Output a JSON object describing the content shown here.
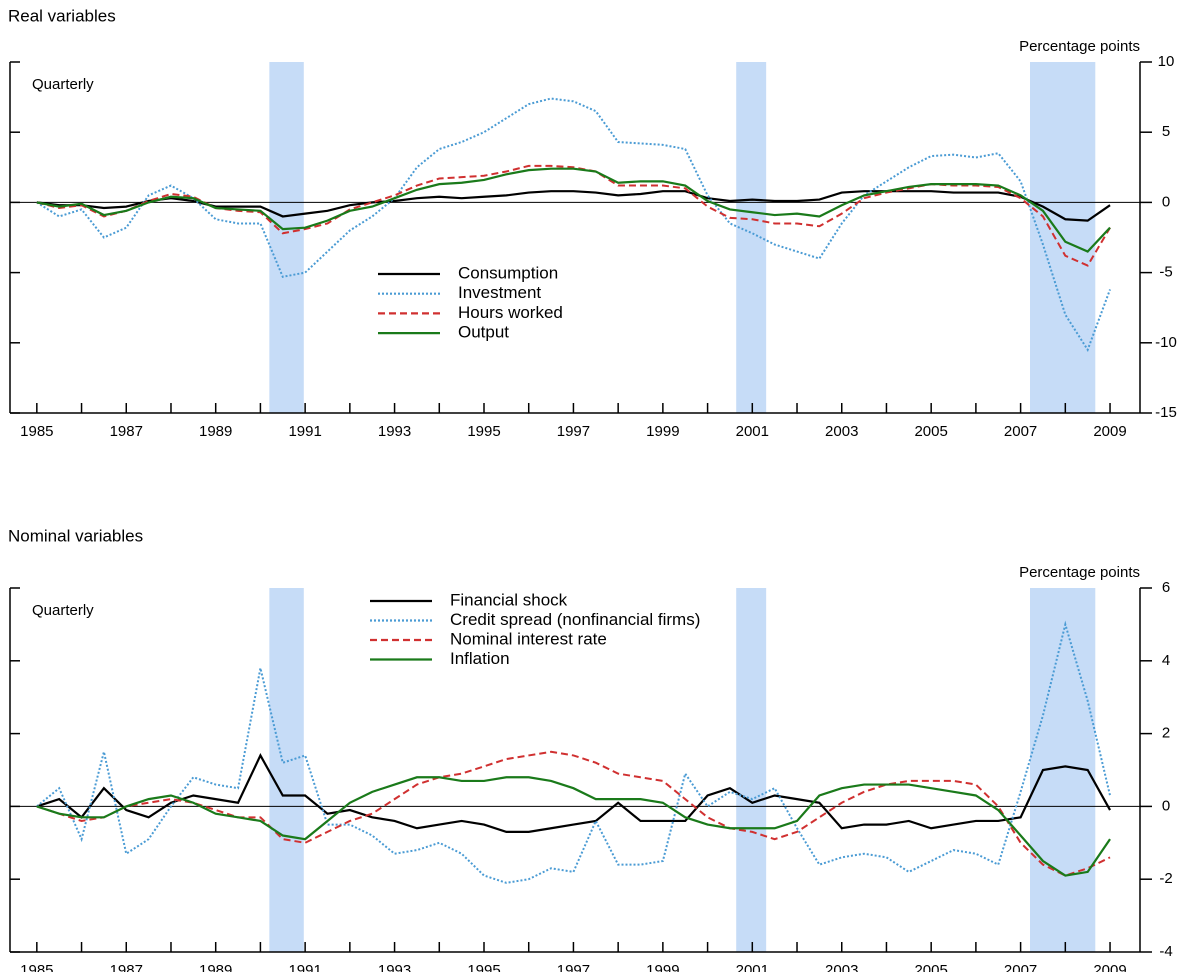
{
  "chart_data": [
    {
      "type": "line",
      "title": "Real variables",
      "y_axis_label": "Percentage points",
      "annotation": "Quarterly",
      "xlim": [
        1984.4,
        2009.67
      ],
      "xticks": [
        1985,
        1987,
        1989,
        1991,
        1993,
        1995,
        1997,
        1999,
        2001,
        2003,
        2005,
        2007,
        2009
      ],
      "xminorticks": [
        1985,
        1986,
        1987,
        1988,
        1989,
        1990,
        1991,
        1992,
        1993,
        1994,
        1995,
        1996,
        1997,
        1998,
        1999,
        2000,
        2001,
        2002,
        2003,
        2004,
        2005,
        2006,
        2007,
        2008,
        2009
      ],
      "ylim": [
        -15,
        10
      ],
      "yticks": [
        10,
        5,
        0,
        -5,
        -10,
        -15
      ],
      "shaded_periods": [
        [
          1990.2,
          1990.97
        ],
        [
          2000.64,
          2001.31
        ],
        [
          2007.21,
          2008.67
        ]
      ],
      "x": [
        1985,
        1985.5,
        1986,
        1986.5,
        1987,
        1987.5,
        1988,
        1988.5,
        1989,
        1989.5,
        1990,
        1990.5,
        1991,
        1991.5,
        1992,
        1992.5,
        1993,
        1993.5,
        1994,
        1994.5,
        1995,
        1995.5,
        1996,
        1996.5,
        1997,
        1997.5,
        1998,
        1998.5,
        1999,
        1999.5,
        2000,
        2000.5,
        2001,
        2001.5,
        2002,
        2002.5,
        2003,
        2003.5,
        2004,
        2004.5,
        2005,
        2005.5,
        2006,
        2006.5,
        2007,
        2007.5,
        2008,
        2008.5,
        2009
      ],
      "series": [
        {
          "name": "Consumption",
          "color": "#000000",
          "style": "solid",
          "values": [
            0,
            -0.2,
            -0.2,
            -0.4,
            -0.3,
            0.1,
            0.3,
            0.1,
            -0.3,
            -0.3,
            -0.3,
            -1.0,
            -0.8,
            -0.6,
            -0.2,
            0,
            0.1,
            0.3,
            0.4,
            0.3,
            0.4,
            0.5,
            0.7,
            0.8,
            0.8,
            0.7,
            0.5,
            0.6,
            0.8,
            0.8,
            0.3,
            0.1,
            0.2,
            0.1,
            0.1,
            0.2,
            0.7,
            0.8,
            0.8,
            0.8,
            0.8,
            0.7,
            0.7,
            0.7,
            0.4,
            -0.3,
            -1.2,
            -1.3,
            -0.2
          ]
        },
        {
          "name": "Investment",
          "color": "#4a9bd4",
          "style": "dotted",
          "values": [
            0,
            -1.0,
            -0.5,
            -2.5,
            -1.8,
            0.5,
            1.2,
            0.3,
            -1.2,
            -1.5,
            -1.5,
            -5.3,
            -5.0,
            -3.5,
            -2.0,
            -1.0,
            0.3,
            2.5,
            3.8,
            4.3,
            5.0,
            6.0,
            7.0,
            7.4,
            7.2,
            6.5,
            4.3,
            4.2,
            4.1,
            3.8,
            0.5,
            -1.5,
            -2.2,
            -3.0,
            -3.5,
            -4.0,
            -1.5,
            0.5,
            1.5,
            2.5,
            3.3,
            3.4,
            3.2,
            3.5,
            1.5,
            -3.0,
            -8.0,
            -10.5,
            -6.2
          ]
        },
        {
          "name": "Hours worked",
          "color": "#d03030",
          "style": "dashed",
          "values": [
            0,
            -0.4,
            -0.2,
            -1.0,
            -0.6,
            0.1,
            0.6,
            0.4,
            -0.4,
            -0.6,
            -0.7,
            -2.2,
            -1.9,
            -1.5,
            -0.5,
            0,
            0.5,
            1.2,
            1.7,
            1.8,
            1.9,
            2.2,
            2.6,
            2.6,
            2.5,
            2.2,
            1.2,
            1.2,
            1.2,
            1.0,
            -0.3,
            -1.1,
            -1.2,
            -1.5,
            -1.5,
            -1.7,
            -0.8,
            0.3,
            0.7,
            1.0,
            1.3,
            1.2,
            1.2,
            1.1,
            0.3,
            -1.0,
            -3.8,
            -4.5,
            -1.8
          ]
        },
        {
          "name": "Output",
          "color": "#1a7a1a",
          "style": "solid",
          "values": [
            0,
            -0.3,
            -0.1,
            -0.9,
            -0.6,
            0,
            0.4,
            0.3,
            -0.4,
            -0.5,
            -0.6,
            -1.9,
            -1.8,
            -1.3,
            -0.6,
            -0.3,
            0.3,
            0.9,
            1.3,
            1.4,
            1.6,
            2.0,
            2.3,
            2.4,
            2.4,
            2.2,
            1.4,
            1.5,
            1.5,
            1.2,
            0.1,
            -0.5,
            -0.7,
            -0.9,
            -0.8,
            -1.0,
            -0.2,
            0.5,
            0.8,
            1.1,
            1.3,
            1.3,
            1.3,
            1.2,
            0.5,
            -0.6,
            -2.8,
            -3.5,
            -1.8
          ]
        }
      ]
    },
    {
      "type": "line",
      "title": "Nominal variables",
      "y_axis_label": "Percentage points",
      "annotation": "Quarterly",
      "xlim": [
        1984.4,
        2009.67
      ],
      "xticks": [
        1985,
        1987,
        1989,
        1991,
        1993,
        1995,
        1997,
        1999,
        2001,
        2003,
        2005,
        2007,
        2009
      ],
      "xminorticks": [
        1985,
        1986,
        1987,
        1988,
        1989,
        1990,
        1991,
        1992,
        1993,
        1994,
        1995,
        1996,
        1997,
        1998,
        1999,
        2000,
        2001,
        2002,
        2003,
        2004,
        2005,
        2006,
        2007,
        2008,
        2009
      ],
      "ylim": [
        -4,
        6
      ],
      "yticks": [
        6,
        4,
        2,
        0,
        -2,
        -4
      ],
      "shaded_periods": [
        [
          1990.2,
          1990.97
        ],
        [
          2000.64,
          2001.31
        ],
        [
          2007.21,
          2008.67
        ]
      ],
      "x": [
        1985,
        1985.5,
        1986,
        1986.5,
        1987,
        1987.5,
        1988,
        1988.5,
        1989,
        1989.5,
        1990,
        1990.5,
        1991,
        1991.5,
        1992,
        1992.5,
        1993,
        1993.5,
        1994,
        1994.5,
        1995,
        1995.5,
        1996,
        1996.5,
        1997,
        1997.5,
        1998,
        1998.5,
        1999,
        1999.5,
        2000,
        2000.5,
        2001,
        2001.5,
        2002,
        2002.5,
        2003,
        2003.5,
        2004,
        2004.5,
        2005,
        2005.5,
        2006,
        2006.5,
        2007,
        2007.5,
        2008,
        2008.5,
        2009
      ],
      "series": [
        {
          "name": "Financial shock",
          "color": "#000000",
          "style": "solid",
          "values": [
            0,
            0.2,
            -0.3,
            0.5,
            -0.1,
            -0.3,
            0.1,
            0.3,
            0.2,
            0.1,
            1.4,
            0.3,
            0.3,
            -0.2,
            -0.1,
            -0.3,
            -0.4,
            -0.6,
            -0.5,
            -0.4,
            -0.5,
            -0.7,
            -0.7,
            -0.6,
            -0.5,
            -0.4,
            0.1,
            -0.4,
            -0.4,
            -0.4,
            0.3,
            0.5,
            0.1,
            0.3,
            0.2,
            0.1,
            -0.6,
            -0.5,
            -0.5,
            -0.4,
            -0.6,
            -0.5,
            -0.4,
            -0.4,
            -0.3,
            1.0,
            1.1,
            1.0,
            -0.1
          ]
        },
        {
          "name": "Credit spread (nonfinancial firms)",
          "color": "#4a9bd4",
          "style": "dotted",
          "values": [
            0,
            0.5,
            -0.9,
            1.5,
            -1.3,
            -0.9,
            0,
            0.8,
            0.6,
            0.5,
            3.8,
            1.2,
            1.4,
            -0.5,
            -0.5,
            -0.8,
            -1.3,
            -1.2,
            -1.0,
            -1.3,
            -1.9,
            -2.1,
            -2.0,
            -1.7,
            -1.8,
            -0.4,
            -1.6,
            -1.6,
            -1.5,
            0.9,
            0,
            0.4,
            0.2,
            0.5,
            -0.6,
            -1.6,
            -1.4,
            -1.3,
            -1.4,
            -1.8,
            -1.5,
            -1.2,
            -1.3,
            -1.6,
            0.4,
            2.5,
            5.0,
            2.9,
            0.3
          ]
        },
        {
          "name": "Nominal interest rate",
          "color": "#d03030",
          "style": "dashed",
          "values": [
            0,
            -0.2,
            -0.4,
            -0.3,
            0,
            0.1,
            0.2,
            0.1,
            -0.1,
            -0.3,
            -0.3,
            -0.9,
            -1.0,
            -0.7,
            -0.4,
            -0.2,
            0.2,
            0.6,
            0.8,
            0.9,
            1.1,
            1.3,
            1.4,
            1.5,
            1.4,
            1.2,
            0.9,
            0.8,
            0.7,
            0.2,
            -0.3,
            -0.6,
            -0.7,
            -0.9,
            -0.7,
            -0.3,
            0.1,
            0.4,
            0.6,
            0.7,
            0.7,
            0.7,
            0.6,
            0,
            -1.0,
            -1.6,
            -1.9,
            -1.7,
            -1.4
          ]
        },
        {
          "name": "Inflation",
          "color": "#1a7a1a",
          "style": "solid",
          "values": [
            0,
            -0.2,
            -0.3,
            -0.3,
            0,
            0.2,
            0.3,
            0.1,
            -0.2,
            -0.3,
            -0.4,
            -0.8,
            -0.9,
            -0.4,
            0.1,
            0.4,
            0.6,
            0.8,
            0.8,
            0.7,
            0.7,
            0.8,
            0.8,
            0.7,
            0.5,
            0.2,
            0.2,
            0.2,
            0.1,
            -0.3,
            -0.5,
            -0.6,
            -0.6,
            -0.6,
            -0.4,
            0.3,
            0.5,
            0.6,
            0.6,
            0.6,
            0.5,
            0.4,
            0.3,
            -0.1,
            -0.8,
            -1.5,
            -1.9,
            -1.8,
            -0.9
          ]
        }
      ]
    }
  ]
}
